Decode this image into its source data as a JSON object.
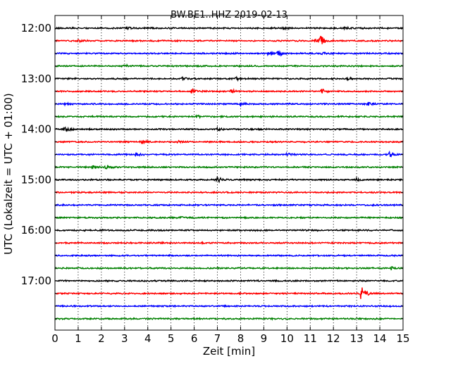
{
  "chart_data": {
    "type": "line",
    "title": "BW.BE1..HHZ 2019-02-13",
    "xlabel": "Zeit  [min]",
    "ylabel": "UTC (Lokalzeit = UTC + 01:00)",
    "xlim": [
      0,
      15
    ],
    "x_ticks": [
      "0",
      "1",
      "2",
      "3",
      "4",
      "5",
      "6",
      "7",
      "8",
      "9",
      "10",
      "11",
      "12",
      "13",
      "14",
      "15"
    ],
    "y_ticks": [
      "12:00",
      "13:00",
      "14:00",
      "15:00",
      "16:00",
      "17:00"
    ],
    "grid": "vertical dotted",
    "trace_colors": [
      "#000000",
      "#ff0000",
      "#0000ff",
      "#008000"
    ],
    "series": [
      {
        "start": "12:00",
        "color": "#000000",
        "events": [
          [
            3.1,
            2
          ],
          [
            9.8,
            1.5
          ],
          [
            12.5,
            1.5
          ]
        ]
      },
      {
        "start": "12:15",
        "color": "#ff0000",
        "events": [
          [
            11.4,
            10
          ],
          [
            11.2,
            3
          ],
          [
            1.0,
            1.5
          ]
        ]
      },
      {
        "start": "12:30",
        "color": "#0000ff",
        "events": [
          [
            9.6,
            5
          ],
          [
            9.2,
            2
          ],
          [
            11.5,
            2
          ]
        ]
      },
      {
        "start": "12:45",
        "color": "#008000",
        "events": [
          [
            3.0,
            2
          ]
        ]
      },
      {
        "start": "13:00",
        "color": "#000000",
        "events": [
          [
            5.5,
            2
          ],
          [
            7.8,
            2
          ],
          [
            12.6,
            2.5
          ]
        ]
      },
      {
        "start": "13:15",
        "color": "#ff0000",
        "events": [
          [
            5.9,
            4
          ],
          [
            7.6,
            3
          ],
          [
            11.5,
            3
          ]
        ]
      },
      {
        "start": "13:30",
        "color": "#0000ff",
        "events": [
          [
            0.4,
            1.5
          ],
          [
            8.0,
            2
          ],
          [
            13.5,
            2
          ]
        ]
      },
      {
        "start": "13:45",
        "color": "#008000",
        "events": [
          [
            6.1,
            2
          ]
        ]
      },
      {
        "start": "14:00",
        "color": "#000000",
        "events": [
          [
            0.4,
            5
          ],
          [
            7.0,
            2
          ]
        ]
      },
      {
        "start": "14:15",
        "color": "#ff0000",
        "events": [
          [
            3.7,
            3
          ],
          [
            5.3,
            1.5
          ]
        ]
      },
      {
        "start": "14:30",
        "color": "#0000ff",
        "events": [
          [
            3.5,
            2.5
          ],
          [
            10.0,
            2
          ],
          [
            14.4,
            4
          ]
        ]
      },
      {
        "start": "14:45",
        "color": "#008000",
        "events": [
          [
            2.2,
            3
          ],
          [
            1.6,
            2
          ]
        ]
      },
      {
        "start": "15:00",
        "color": "#000000",
        "events": [
          [
            7.0,
            4
          ],
          [
            13.0,
            2
          ]
        ]
      },
      {
        "start": "15:15",
        "color": "#ff0000",
        "events": []
      },
      {
        "start": "15:30",
        "color": "#0000ff",
        "events": []
      },
      {
        "start": "15:45",
        "color": "#008000",
        "events": [
          [
            5.4,
            1.5
          ]
        ]
      },
      {
        "start": "16:00",
        "color": "#000000",
        "events": []
      },
      {
        "start": "16:15",
        "color": "#ff0000",
        "events": [
          [
            4.5,
            1.5
          ]
        ]
      },
      {
        "start": "16:30",
        "color": "#0000ff",
        "events": []
      },
      {
        "start": "16:45",
        "color": "#008000",
        "events": [
          [
            14.5,
            2
          ]
        ]
      },
      {
        "start": "17:00",
        "color": "#000000",
        "events": []
      },
      {
        "start": "17:15",
        "color": "#ff0000",
        "events": [
          [
            13.2,
            12
          ]
        ]
      },
      {
        "start": "17:30",
        "color": "#0000ff",
        "events": []
      },
      {
        "start": "17:45",
        "color": "#008000",
        "events": []
      }
    ]
  }
}
